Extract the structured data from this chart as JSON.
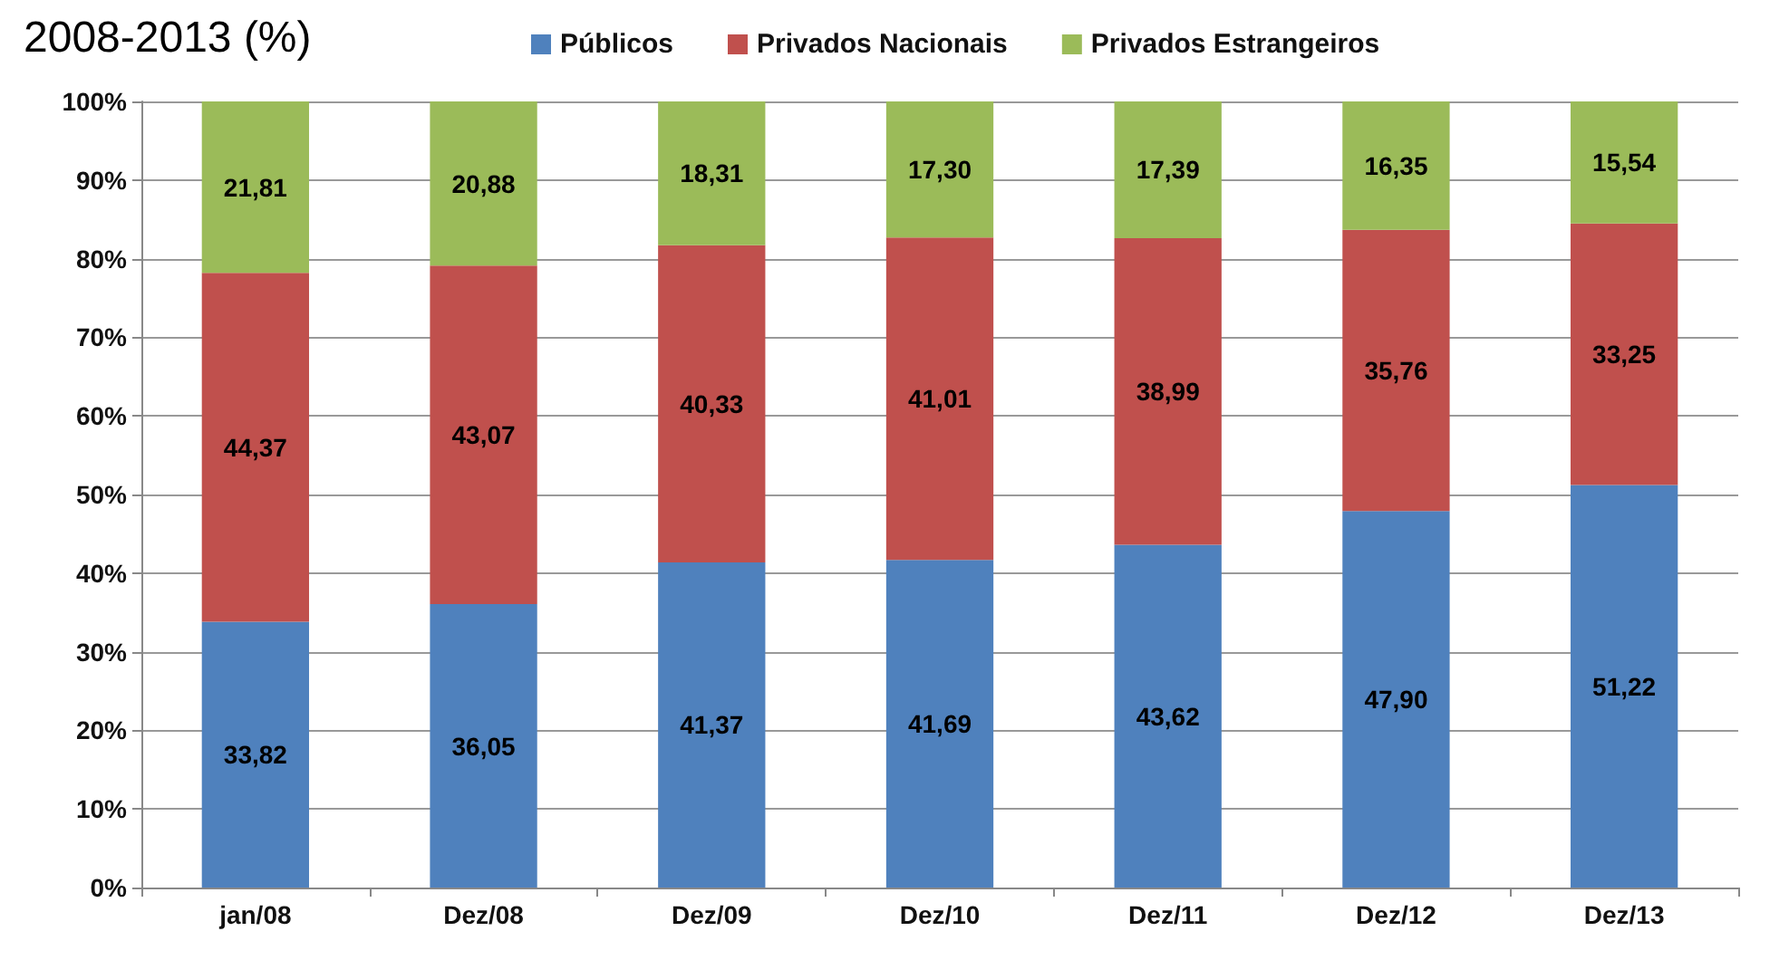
{
  "chart_data": {
    "type": "bar",
    "stacked": true,
    "title": "2008-2013 (%)",
    "categories": [
      "jan/08",
      "Dez/08",
      "Dez/09",
      "Dez/10",
      "Dez/11",
      "Dez/12",
      "Dez/13"
    ],
    "series": [
      {
        "name": "Públicos",
        "color": "#4f81bd",
        "values": [
          33.82,
          36.05,
          41.37,
          41.69,
          43.62,
          47.9,
          51.22
        ],
        "value_labels": [
          "33,82",
          "36,05",
          "41,37",
          "41,69",
          "43,62",
          "47,90",
          "51,22"
        ]
      },
      {
        "name": "Privados Nacionais",
        "color": "#c0504d",
        "values": [
          44.37,
          43.07,
          40.33,
          41.01,
          38.99,
          35.76,
          33.25
        ],
        "value_labels": [
          "44,37",
          "43,07",
          "40,33",
          "41,01",
          "38,99",
          "35,76",
          "33,25"
        ]
      },
      {
        "name": "Privados Estrangeiros",
        "color": "#9bbb59",
        "values": [
          21.81,
          20.88,
          18.31,
          17.3,
          17.39,
          16.35,
          15.54
        ],
        "value_labels": [
          "21,81",
          "20,88",
          "18,31",
          "17,30",
          "17,39",
          "16,35",
          "15,54"
        ]
      }
    ],
    "ylim": [
      0,
      100
    ],
    "yticks": [
      {
        "value": 0,
        "label": "0%"
      },
      {
        "value": 10,
        "label": "10%"
      },
      {
        "value": 20,
        "label": "20%"
      },
      {
        "value": 30,
        "label": "30%"
      },
      {
        "value": 40,
        "label": "40%"
      },
      {
        "value": 50,
        "label": "50%"
      },
      {
        "value": 60,
        "label": "60%"
      },
      {
        "value": 70,
        "label": "70%"
      },
      {
        "value": 80,
        "label": "80%"
      },
      {
        "value": 90,
        "label": "90%"
      },
      {
        "value": 100,
        "label": "100%"
      }
    ],
    "grid": "y",
    "legend": "top"
  }
}
